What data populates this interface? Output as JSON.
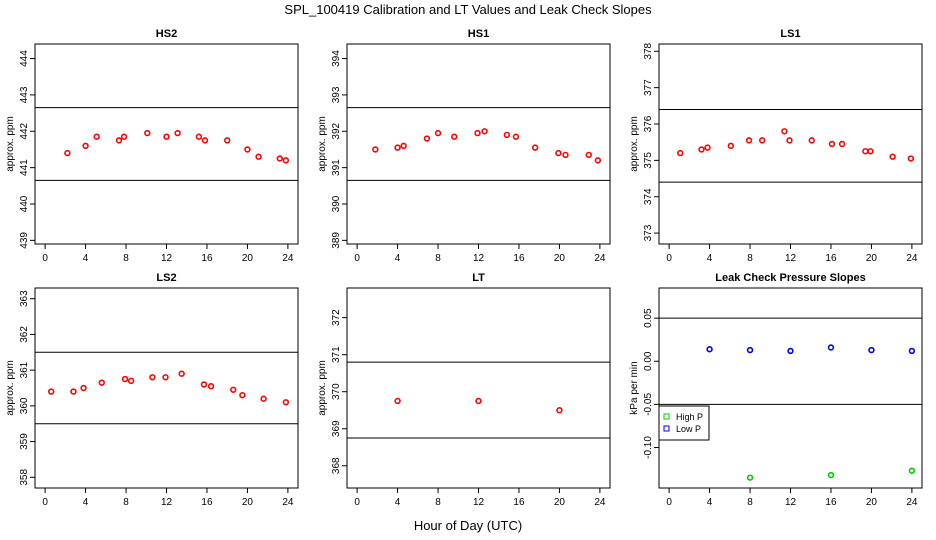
{
  "figure": {
    "title": "SPL_100419  Calibration and LT Values and Leak Check Slopes",
    "xlabel": "Hour of Day (UTC)"
  },
  "colors": {
    "red": "#ff0000",
    "green": "#00cc00",
    "blue": "#0000ff",
    "axis": "#000000"
  },
  "chart_data": [
    {
      "type": "scatter",
      "title": "HS2",
      "ylabel": "approx. ppm",
      "xlim": [
        -1,
        25
      ],
      "ylim": [
        438.9,
        444.4
      ],
      "xticks": [
        0,
        4,
        8,
        12,
        16,
        20,
        24
      ],
      "yticks": [
        439,
        440,
        441,
        442,
        443,
        444
      ],
      "hlines": [
        442.65,
        440.65
      ],
      "series": [
        {
          "color": "red",
          "x": [
            2.2,
            4.0,
            5.1,
            7.3,
            7.8,
            10.1,
            12.0,
            13.1,
            15.2,
            15.8,
            18.0,
            20.0,
            21.1,
            23.2,
            23.8
          ],
          "y": [
            441.4,
            441.6,
            441.85,
            441.75,
            441.85,
            441.95,
            441.85,
            441.95,
            441.85,
            441.75,
            441.75,
            441.5,
            441.3,
            441.25,
            441.2
          ]
        }
      ]
    },
    {
      "type": "scatter",
      "title": "HS1",
      "ylabel": "approx. ppm",
      "xlim": [
        -1,
        25
      ],
      "ylim": [
        388.9,
        394.4
      ],
      "xticks": [
        0,
        4,
        8,
        12,
        16,
        20,
        24
      ],
      "yticks": [
        389,
        390,
        391,
        392,
        393,
        394
      ],
      "hlines": [
        392.65,
        390.65
      ],
      "series": [
        {
          "color": "red",
          "x": [
            1.8,
            4.0,
            4.6,
            6.9,
            8.0,
            9.6,
            11.9,
            12.6,
            14.8,
            15.7,
            17.6,
            19.9,
            20.6,
            22.9,
            23.8
          ],
          "y": [
            391.5,
            391.55,
            391.6,
            391.8,
            391.95,
            391.85,
            391.95,
            392.0,
            391.9,
            391.85,
            391.55,
            391.4,
            391.35,
            391.35,
            391.2
          ]
        }
      ]
    },
    {
      "type": "scatter",
      "title": "LS1",
      "ylabel": "approx. ppm",
      "xlim": [
        -1,
        25
      ],
      "ylim": [
        372.7,
        378.2
      ],
      "xticks": [
        0,
        4,
        8,
        12,
        16,
        20,
        24
      ],
      "yticks": [
        373,
        374,
        375,
        376,
        377,
        378
      ],
      "hlines": [
        376.4,
        374.4
      ],
      "series": [
        {
          "color": "red",
          "x": [
            1.1,
            3.2,
            3.8,
            6.1,
            7.9,
            9.2,
            11.4,
            11.9,
            14.1,
            16.1,
            17.1,
            19.4,
            19.9,
            22.1,
            23.9
          ],
          "y": [
            375.2,
            375.3,
            375.35,
            375.4,
            375.55,
            375.55,
            375.8,
            375.55,
            375.55,
            375.45,
            375.45,
            375.25,
            375.25,
            375.1,
            375.05
          ]
        }
      ]
    },
    {
      "type": "scatter",
      "title": "LS2",
      "ylabel": "approx. ppm",
      "xlim": [
        -1,
        25
      ],
      "ylim": [
        357.7,
        363.3
      ],
      "xticks": [
        0,
        4,
        8,
        12,
        16,
        20,
        24
      ],
      "yticks": [
        358,
        359,
        360,
        361,
        362,
        363
      ],
      "hlines": [
        361.5,
        359.5
      ],
      "series": [
        {
          "color": "red",
          "x": [
            0.6,
            2.8,
            3.8,
            5.6,
            7.9,
            8.5,
            10.6,
            11.9,
            13.5,
            15.7,
            16.4,
            18.6,
            19.5,
            21.6,
            23.8
          ],
          "y": [
            360.4,
            360.4,
            360.5,
            360.65,
            360.75,
            360.7,
            360.8,
            360.8,
            360.9,
            360.6,
            360.55,
            360.45,
            360.3,
            360.2,
            360.1
          ]
        }
      ]
    },
    {
      "type": "scatter",
      "title": "LT",
      "ylabel": "approx. ppm",
      "xlim": [
        -1,
        25
      ],
      "ylim": [
        367.4,
        372.8
      ],
      "xticks": [
        0,
        4,
        8,
        12,
        16,
        20,
        24
      ],
      "yticks": [
        368,
        369,
        370,
        371,
        372
      ],
      "hlines": [
        370.8,
        368.75
      ],
      "series": [
        {
          "color": "red",
          "x": [
            4.0,
            12.0,
            20.0
          ],
          "y": [
            369.75,
            369.75,
            369.5
          ]
        }
      ]
    },
    {
      "type": "scatter",
      "title": "Leak Check Pressure Slopes",
      "ylabel": "kPa per min",
      "xlim": [
        -1,
        25
      ],
      "ylim": [
        -0.147,
        0.085
      ],
      "xticks": [
        0,
        4,
        8,
        12,
        16,
        20,
        24
      ],
      "yticks": [
        -0.1,
        -0.05,
        0.0,
        0.05
      ],
      "ytick_labels": [
        "-0.10",
        "-0.05",
        "0.00",
        "0.05"
      ],
      "hlines": [
        0.05,
        -0.05
      ],
      "legend": {
        "placement": "left",
        "entries": [
          {
            "label": "High P",
            "color": "green"
          },
          {
            "label": "Low P",
            "color": "blue"
          }
        ]
      },
      "series": [
        {
          "name": "High P",
          "color": "green",
          "x": [
            8,
            16,
            24
          ],
          "y": [
            -0.135,
            -0.132,
            -0.127
          ]
        },
        {
          "name": "Low P",
          "color": "blue",
          "x": [
            4,
            8,
            12,
            16,
            20,
            24
          ],
          "y": [
            0.014,
            0.013,
            0.012,
            0.016,
            0.013,
            0.012
          ]
        }
      ]
    }
  ]
}
